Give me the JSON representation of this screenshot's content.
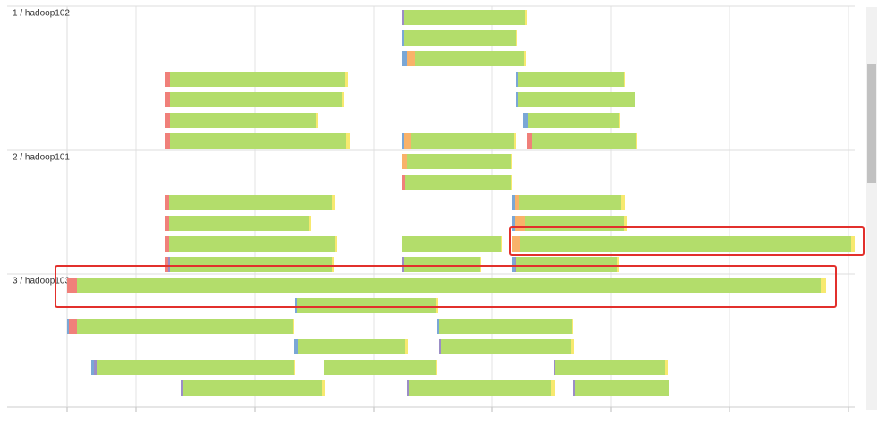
{
  "chart_data": {
    "type": "timeline",
    "groups": [
      {
        "label": "1 / hadoop102",
        "lanes": 7
      },
      {
        "label": "2 / hadoop101",
        "lanes": 6
      },
      {
        "label": "3 / hadoop103",
        "lanes": 6
      }
    ],
    "colors": [
      "#f0807a",
      "#7aa7d6",
      "#f8b26a",
      "#b3dd6b",
      "#f7e96f",
      "#9b8dc6"
    ],
    "xlim": [
      0,
      880
    ],
    "xticks": [
      0,
      77,
      210,
      343,
      475,
      608,
      740,
      873
    ],
    "grid": true,
    "tasks": [
      {
        "lane": 0,
        "start": 374,
        "segments": [
          [
            5,
            2
          ],
          [
            3,
            136
          ],
          [
            4,
            2
          ]
        ]
      },
      {
        "lane": 1,
        "start": 374,
        "segments": [
          [
            1,
            2
          ],
          [
            3,
            125
          ],
          [
            4,
            2
          ]
        ]
      },
      {
        "lane": 2,
        "start": 374,
        "segments": [
          [
            1,
            6
          ],
          [
            2,
            9
          ],
          [
            3,
            122
          ],
          [
            4,
            2
          ]
        ]
      },
      {
        "lane": 3,
        "start": 109,
        "segments": [
          [
            0,
            6
          ],
          [
            3,
            195
          ],
          [
            4,
            4
          ]
        ]
      },
      {
        "lane": 3,
        "start": 502,
        "segments": [
          [
            1,
            2
          ],
          [
            3,
            118
          ],
          [
            4,
            1
          ]
        ]
      },
      {
        "lane": 4,
        "start": 109,
        "segments": [
          [
            0,
            6
          ],
          [
            3,
            192
          ],
          [
            4,
            2
          ]
        ]
      },
      {
        "lane": 4,
        "start": 502,
        "segments": [
          [
            1,
            2
          ],
          [
            3,
            130
          ],
          [
            4,
            1
          ]
        ]
      },
      {
        "lane": 5,
        "start": 109,
        "segments": [
          [
            0,
            6
          ],
          [
            3,
            163
          ],
          [
            4,
            2
          ]
        ]
      },
      {
        "lane": 5,
        "start": 509,
        "segments": [
          [
            1,
            6
          ],
          [
            3,
            102
          ],
          [
            4,
            1
          ]
        ]
      },
      {
        "lane": 6,
        "start": 109,
        "segments": [
          [
            0,
            6
          ],
          [
            3,
            197
          ],
          [
            4,
            4
          ]
        ]
      },
      {
        "lane": 6,
        "start": 374,
        "segments": [
          [
            1,
            2
          ],
          [
            2,
            8
          ],
          [
            3,
            115
          ],
          [
            4,
            3
          ]
        ]
      },
      {
        "lane": 6,
        "start": 514,
        "segments": [
          [
            0,
            5
          ],
          [
            3,
            117
          ],
          [
            4,
            1
          ]
        ]
      },
      {
        "lane": 7,
        "start": 374,
        "segments": [
          [
            2,
            6
          ],
          [
            3,
            116
          ],
          [
            4,
            1
          ]
        ]
      },
      {
        "lane": 8,
        "start": 374,
        "segments": [
          [
            0,
            4
          ],
          [
            3,
            118
          ],
          [
            4,
            1
          ]
        ]
      },
      {
        "lane": 9,
        "start": 109,
        "segments": [
          [
            0,
            5
          ],
          [
            3,
            182
          ],
          [
            4,
            3
          ]
        ]
      },
      {
        "lane": 9,
        "start": 497,
        "segments": [
          [
            1,
            3
          ],
          [
            2,
            5
          ],
          [
            3,
            114
          ],
          [
            4,
            4
          ]
        ]
      },
      {
        "lane": 10,
        "start": 109,
        "segments": [
          [
            0,
            5
          ],
          [
            3,
            156
          ],
          [
            4,
            3
          ]
        ]
      },
      {
        "lane": 10,
        "start": 497,
        "segments": [
          [
            1,
            3
          ],
          [
            2,
            12
          ],
          [
            3,
            110
          ],
          [
            4,
            4
          ]
        ]
      },
      {
        "lane": 11,
        "start": 109,
        "segments": [
          [
            0,
            5
          ],
          [
            3,
            185
          ],
          [
            4,
            3
          ]
        ]
      },
      {
        "lane": 11,
        "start": 374,
        "segments": [
          [
            3,
            111
          ],
          [
            4,
            1
          ]
        ]
      },
      {
        "lane": 11,
        "start": 497,
        "segments": [
          [
            2,
            9
          ],
          [
            3,
            370
          ],
          [
            4,
            4
          ]
        ]
      },
      {
        "lane": 12,
        "start": 109,
        "segments": [
          [
            0,
            4
          ],
          [
            5,
            2
          ],
          [
            3,
            181
          ],
          [
            4,
            2
          ]
        ]
      },
      {
        "lane": 12,
        "start": 374,
        "segments": [
          [
            5,
            2
          ],
          [
            3,
            85
          ],
          [
            4,
            1
          ]
        ]
      },
      {
        "lane": 12,
        "start": 497,
        "segments": [
          [
            1,
            3
          ],
          [
            5,
            2
          ],
          [
            3,
            112
          ],
          [
            4,
            3
          ]
        ]
      },
      {
        "lane": 13,
        "start": 0,
        "segments": [
          [
            0,
            11
          ],
          [
            3,
            831
          ],
          [
            4,
            6
          ]
        ]
      },
      {
        "lane": 14,
        "start": 255,
        "segments": [
          [
            1,
            2
          ],
          [
            3,
            155
          ],
          [
            4,
            2
          ]
        ]
      },
      {
        "lane": 15,
        "start": 0,
        "segments": [
          [
            1,
            2
          ],
          [
            0,
            9
          ],
          [
            3,
            241
          ],
          [
            4,
            1
          ]
        ]
      },
      {
        "lane": 15,
        "start": 413,
        "segments": [
          [
            1,
            3
          ],
          [
            3,
            148
          ],
          [
            4,
            1
          ]
        ]
      },
      {
        "lane": 16,
        "start": 253,
        "segments": [
          [
            1,
            5
          ],
          [
            3,
            119
          ],
          [
            4,
            4
          ]
        ]
      },
      {
        "lane": 16,
        "start": 415,
        "segments": [
          [
            5,
            3
          ],
          [
            3,
            145
          ],
          [
            4,
            3
          ]
        ]
      },
      {
        "lane": 17,
        "start": 27,
        "segments": [
          [
            1,
            3
          ],
          [
            5,
            3
          ],
          [
            3,
            221
          ],
          [
            4,
            1
          ]
        ]
      },
      {
        "lane": 17,
        "start": 287,
        "segments": [
          [
            3,
            125
          ],
          [
            4,
            1
          ]
        ]
      },
      {
        "lane": 17,
        "start": 544,
        "segments": [
          [
            5,
            1
          ],
          [
            3,
            123
          ],
          [
            4,
            3
          ]
        ]
      },
      {
        "lane": 18,
        "start": 127,
        "segments": [
          [
            5,
            2
          ],
          [
            3,
            156
          ],
          [
            4,
            3
          ]
        ]
      },
      {
        "lane": 18,
        "start": 380,
        "segments": [
          [
            5,
            2
          ],
          [
            3,
            159
          ],
          [
            4,
            4
          ]
        ]
      },
      {
        "lane": 18,
        "start": 565,
        "segments": [
          [
            5,
            2
          ],
          [
            3,
            106
          ]
        ]
      }
    ]
  }
}
